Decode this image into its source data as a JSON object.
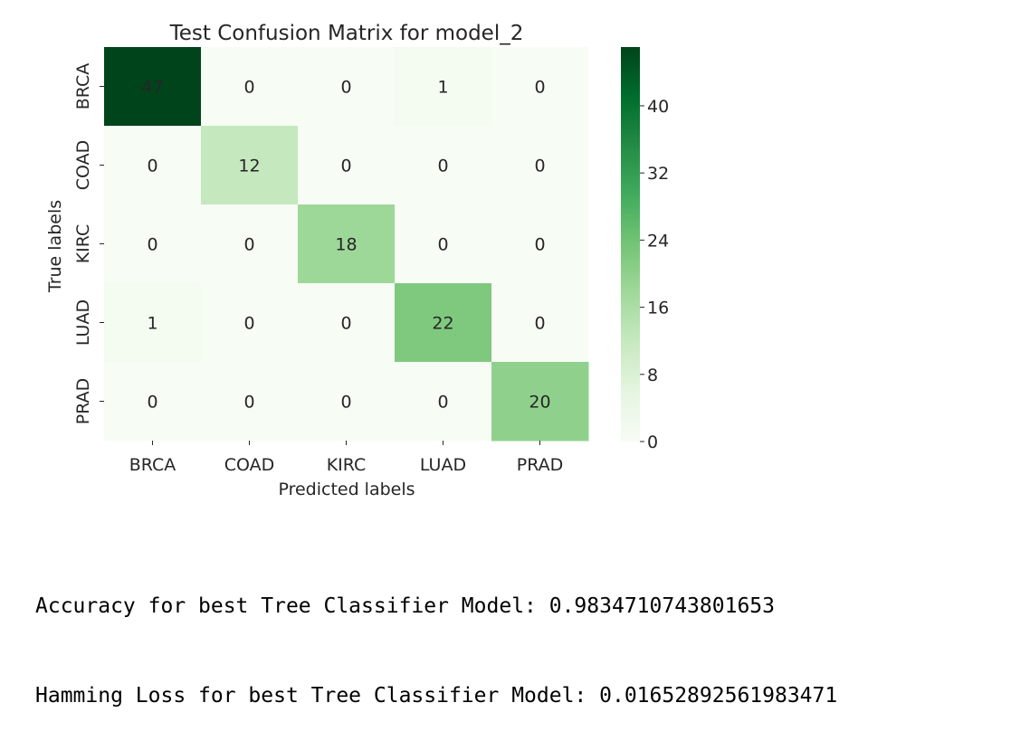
{
  "chart_data": {
    "type": "heatmap",
    "title": "Test Confusion Matrix for model_2",
    "xlabel": "Predicted labels",
    "ylabel": "True labels",
    "x_categories": [
      "BRCA",
      "COAD",
      "KIRC",
      "LUAD",
      "PRAD"
    ],
    "y_categories": [
      "BRCA",
      "COAD",
      "KIRC",
      "LUAD",
      "PRAD"
    ],
    "values": [
      [
        47,
        0,
        0,
        1,
        0
      ],
      [
        0,
        12,
        0,
        0,
        0
      ],
      [
        0,
        0,
        18,
        0,
        0
      ],
      [
        1,
        0,
        0,
        22,
        0
      ],
      [
        0,
        0,
        0,
        0,
        20
      ]
    ],
    "colormap": "Greens",
    "colorbar": {
      "min": 0,
      "max": 47,
      "ticks": [
        0,
        8,
        16,
        24,
        32,
        40
      ]
    },
    "annotated": true,
    "grid": false
  },
  "output": {
    "accuracy_line": "Accuracy for best Tree Classifier Model: 0.9834710743801653",
    "hamming_line": "Hamming Loss for best Tree Classifier Model: 0.01652892561983471"
  }
}
